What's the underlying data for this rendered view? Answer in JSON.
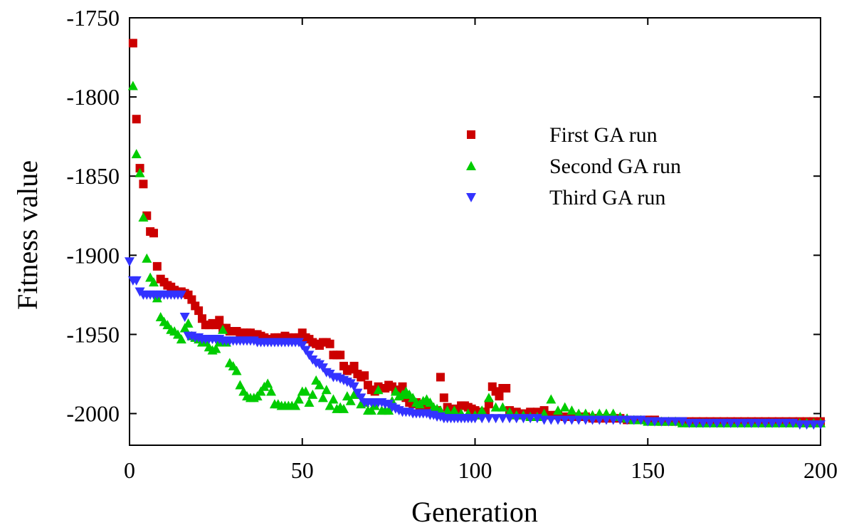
{
  "chart_data": {
    "type": "scatter",
    "title": "",
    "xlabel": "Generation",
    "ylabel": "Fitness value",
    "xlim": [
      0,
      200
    ],
    "ylim": [
      -2020,
      -1750
    ],
    "xticks": [
      0,
      50,
      100,
      150,
      200
    ],
    "xtick_labels": [
      "0",
      "50",
      "100",
      "150",
      "200"
    ],
    "yticks": [
      -1750,
      -1800,
      -1850,
      -1900,
      -1950,
      -2000
    ],
    "ytick_labels": [
      "-1750",
      "-1800",
      "-1850",
      "-1900",
      "-1950",
      "-2000"
    ],
    "grid": false,
    "legend_position": "top-right",
    "series": [
      {
        "name": "First GA run",
        "marker": "square",
        "color": "#cc0000",
        "x": [
          1,
          2,
          3,
          4,
          5,
          6,
          7,
          8,
          9,
          10,
          11,
          12,
          13,
          14,
          15,
          16,
          17,
          18,
          19,
          20,
          21,
          22,
          23,
          24,
          25,
          26,
          27,
          28,
          29,
          30,
          31,
          32,
          33,
          34,
          35,
          36,
          37,
          38,
          39,
          40,
          41,
          42,
          43,
          44,
          45,
          46,
          47,
          48,
          49,
          50,
          51,
          52,
          53,
          54,
          55,
          56,
          57,
          58,
          59,
          60,
          61,
          62,
          63,
          64,
          65,
          66,
          67,
          68,
          69,
          70,
          71,
          72,
          73,
          74,
          75,
          76,
          77,
          78,
          79,
          80,
          81,
          82,
          83,
          84,
          85,
          86,
          87,
          88,
          89,
          90,
          91,
          92,
          93,
          94,
          95,
          96,
          97,
          98,
          99,
          100,
          101,
          102,
          103,
          104,
          105,
          106,
          107,
          108,
          109,
          110,
          112,
          114,
          116,
          118,
          120,
          122,
          124,
          126,
          128,
          130,
          132,
          134,
          136,
          138,
          140,
          142,
          144,
          146,
          148,
          150,
          152,
          154,
          156,
          158,
          160,
          162,
          164,
          166,
          168,
          170,
          172,
          174,
          176,
          178,
          180,
          182,
          184,
          186,
          188,
          190,
          192,
          194,
          196,
          198,
          200
        ],
        "y": [
          -1766,
          -1814,
          -1845,
          -1855,
          -1875,
          -1885,
          -1886,
          -1907,
          -1915,
          -1917,
          -1919,
          -1920,
          -1922,
          -1923,
          -1923,
          -1924,
          -1925,
          -1928,
          -1932,
          -1935,
          -1940,
          -1944,
          -1944,
          -1943,
          -1944,
          -1941,
          -1946,
          -1946,
          -1948,
          -1948,
          -1948,
          -1949,
          -1949,
          -1949,
          -1949,
          -1950,
          -1950,
          -1951,
          -1952,
          -1953,
          -1953,
          -1952,
          -1952,
          -1952,
          -1951,
          -1952,
          -1953,
          -1952,
          -1952,
          -1949,
          -1952,
          -1953,
          -1955,
          -1956,
          -1957,
          -1955,
          -1955,
          -1956,
          -1963,
          -1963,
          -1963,
          -1970,
          -1973,
          -1972,
          -1970,
          -1975,
          -1977,
          -1976,
          -1982,
          -1985,
          -1986,
          -1983,
          -1984,
          -1984,
          -1982,
          -1983,
          -1985,
          -1986,
          -1983,
          -1990,
          -1993,
          -1994,
          -1993,
          -1995,
          -1994,
          -1996,
          -1996,
          -1998,
          -1998,
          -1977,
          -1990,
          -1996,
          -1998,
          -1997,
          -1998,
          -1995,
          -1995,
          -1996,
          -1997,
          -1998,
          -1999,
          -1999,
          -1999,
          -1994,
          -1983,
          -1986,
          -1989,
          -1984,
          -1984,
          -1998,
          -1999,
          -2000,
          -1999,
          -1999,
          -1998,
          -2001,
          -2001,
          -2002,
          -2002,
          -2002,
          -2002,
          -2003,
          -2003,
          -2003,
          -2003,
          -2003,
          -2004,
          -2004,
          -2004,
          -2004,
          -2004,
          -2005,
          -2005,
          -2005,
          -2005,
          -2005,
          -2005,
          -2005,
          -2005,
          -2005,
          -2005,
          -2005,
          -2005,
          -2005,
          -2005,
          -2005,
          -2005,
          -2005,
          -2005,
          -2005,
          -2005,
          -2005,
          -2005,
          -2005,
          -2005
        ]
      },
      {
        "name": "Second GA run",
        "marker": "triangle-up",
        "color": "#00cc00",
        "x": [
          1,
          2,
          3,
          4,
          5,
          6,
          7,
          8,
          9,
          10,
          11,
          12,
          13,
          14,
          15,
          16,
          17,
          18,
          19,
          20,
          21,
          22,
          23,
          24,
          25,
          26,
          27,
          28,
          29,
          30,
          31,
          32,
          33,
          34,
          35,
          36,
          37,
          38,
          39,
          40,
          41,
          42,
          43,
          44,
          45,
          46,
          47,
          48,
          49,
          50,
          51,
          52,
          53,
          54,
          55,
          56,
          57,
          58,
          59,
          60,
          61,
          62,
          63,
          64,
          65,
          66,
          67,
          68,
          69,
          70,
          71,
          72,
          73,
          74,
          75,
          76,
          77,
          78,
          79,
          80,
          81,
          82,
          83,
          84,
          85,
          86,
          87,
          88,
          89,
          90,
          92,
          94,
          96,
          98,
          100,
          102,
          104,
          106,
          108,
          110,
          112,
          114,
          116,
          118,
          120,
          122,
          124,
          126,
          128,
          130,
          132,
          134,
          136,
          138,
          140,
          142,
          144,
          146,
          148,
          150,
          152,
          154,
          156,
          158,
          160,
          162,
          164,
          166,
          168,
          170,
          172,
          174,
          176,
          178,
          180,
          182,
          184,
          186,
          188,
          190,
          192,
          194,
          196,
          198,
          200
        ],
        "y": [
          -1793,
          -1836,
          -1848,
          -1876,
          -1902,
          -1914,
          -1917,
          -1927,
          -1939,
          -1942,
          -1944,
          -1947,
          -1948,
          -1950,
          -1953,
          -1946,
          -1943,
          -1951,
          -1952,
          -1953,
          -1955,
          -1955,
          -1958,
          -1960,
          -1959,
          -1955,
          -1947,
          -1955,
          -1968,
          -1970,
          -1973,
          -1982,
          -1986,
          -1989,
          -1990,
          -1990,
          -1989,
          -1986,
          -1983,
          -1981,
          -1986,
          -1994,
          -1994,
          -1995,
          -1995,
          -1995,
          -1995,
          -1995,
          -1991,
          -1986,
          -1986,
          -1993,
          -1988,
          -1979,
          -1982,
          -1990,
          -1985,
          -1995,
          -1991,
          -1997,
          -1996,
          -1997,
          -1989,
          -1992,
          -1988,
          -1988,
          -1994,
          -1993,
          -1998,
          -1998,
          -1995,
          -1985,
          -1998,
          -1998,
          -1998,
          -1992,
          -1986,
          -1989,
          -1988,
          -1986,
          -1988,
          -1990,
          -1993,
          -1994,
          -1992,
          -1991,
          -1993,
          -1996,
          -1997,
          -1998,
          -1998,
          -1998,
          -2000,
          -2000,
          -2001,
          -1998,
          -1990,
          -1996,
          -1996,
          -1999,
          -2001,
          -2001,
          -2002,
          -2002,
          -2000,
          -1991,
          -1998,
          -1996,
          -1998,
          -2000,
          -2000,
          -2001,
          -2000,
          -2000,
          -2000,
          -2002,
          -2003,
          -2004,
          -2004,
          -2005,
          -2005,
          -2005,
          -2005,
          -2005,
          -2006,
          -2006,
          -2006,
          -2006,
          -2006,
          -2006,
          -2006,
          -2006,
          -2006,
          -2006,
          -2006,
          -2006,
          -2006,
          -2006,
          -2006,
          -2006,
          -2006,
          -2006,
          -2006,
          -2006,
          -2006
        ]
      },
      {
        "name": "Third GA run",
        "marker": "triangle-down",
        "color": "#3333ff",
        "x": [
          0,
          1,
          2,
          3,
          4,
          5,
          6,
          7,
          8,
          9,
          10,
          11,
          12,
          13,
          14,
          15,
          16,
          17,
          18,
          19,
          20,
          21,
          22,
          23,
          24,
          25,
          26,
          27,
          28,
          29,
          30,
          31,
          32,
          33,
          34,
          35,
          36,
          37,
          38,
          39,
          40,
          41,
          42,
          43,
          44,
          45,
          46,
          47,
          48,
          49,
          50,
          51,
          52,
          53,
          54,
          55,
          56,
          57,
          58,
          59,
          60,
          61,
          62,
          63,
          64,
          65,
          66,
          67,
          68,
          69,
          70,
          71,
          72,
          73,
          74,
          75,
          76,
          77,
          78,
          79,
          80,
          81,
          82,
          83,
          84,
          85,
          86,
          87,
          88,
          89,
          90,
          91,
          92,
          93,
          94,
          95,
          96,
          97,
          98,
          99,
          100,
          102,
          104,
          106,
          108,
          110,
          112,
          114,
          116,
          118,
          120,
          122,
          124,
          126,
          128,
          130,
          132,
          134,
          136,
          138,
          140,
          142,
          144,
          146,
          148,
          150,
          152,
          154,
          156,
          158,
          160,
          162,
          164,
          166,
          168,
          170,
          172,
          174,
          176,
          178,
          180,
          182,
          184,
          186,
          188,
          190,
          192,
          194,
          196,
          198,
          200
        ],
        "y": [
          -1904,
          -1916,
          -1916,
          -1923,
          -1925,
          -1925,
          -1925,
          -1925,
          -1925,
          -1925,
          -1925,
          -1925,
          -1925,
          -1925,
          -1925,
          -1925,
          -1939,
          -1951,
          -1951,
          -1952,
          -1952,
          -1953,
          -1953,
          -1953,
          -1953,
          -1953,
          -1953,
          -1954,
          -1954,
          -1954,
          -1954,
          -1954,
          -1954,
          -1954,
          -1954,
          -1954,
          -1954,
          -1955,
          -1955,
          -1955,
          -1955,
          -1955,
          -1955,
          -1955,
          -1955,
          -1955,
          -1955,
          -1955,
          -1955,
          -1955,
          -1957,
          -1960,
          -1963,
          -1966,
          -1968,
          -1969,
          -1971,
          -1974,
          -1975,
          -1977,
          -1977,
          -1978,
          -1979,
          -1980,
          -1981,
          -1983,
          -1987,
          -1990,
          -1993,
          -1993,
          -1993,
          -1993,
          -1993,
          -1993,
          -1994,
          -1994,
          -1996,
          -1997,
          -1998,
          -1999,
          -1999,
          -1999,
          -2000,
          -2000,
          -2000,
          -2000,
          -2000,
          -2001,
          -2001,
          -2002,
          -2002,
          -2003,
          -2003,
          -2003,
          -2003,
          -2003,
          -2003,
          -2003,
          -2003,
          -2003,
          -2003,
          -2003,
          -2003,
          -2003,
          -2003,
          -2003,
          -2003,
          -2003,
          -2003,
          -2003,
          -2004,
          -2004,
          -2004,
          -2004,
          -2004,
          -2004,
          -2004,
          -2004,
          -2004,
          -2004,
          -2004,
          -2004,
          -2004,
          -2004,
          -2004,
          -2005,
          -2005,
          -2005,
          -2005,
          -2005,
          -2005,
          -2006,
          -2006,
          -2006,
          -2006,
          -2006,
          -2006,
          -2006,
          -2006,
          -2006,
          -2006,
          -2006,
          -2006,
          -2006,
          -2006,
          -2006,
          -2006,
          -2007,
          -2007,
          -2007,
          -2007
        ]
      }
    ]
  }
}
